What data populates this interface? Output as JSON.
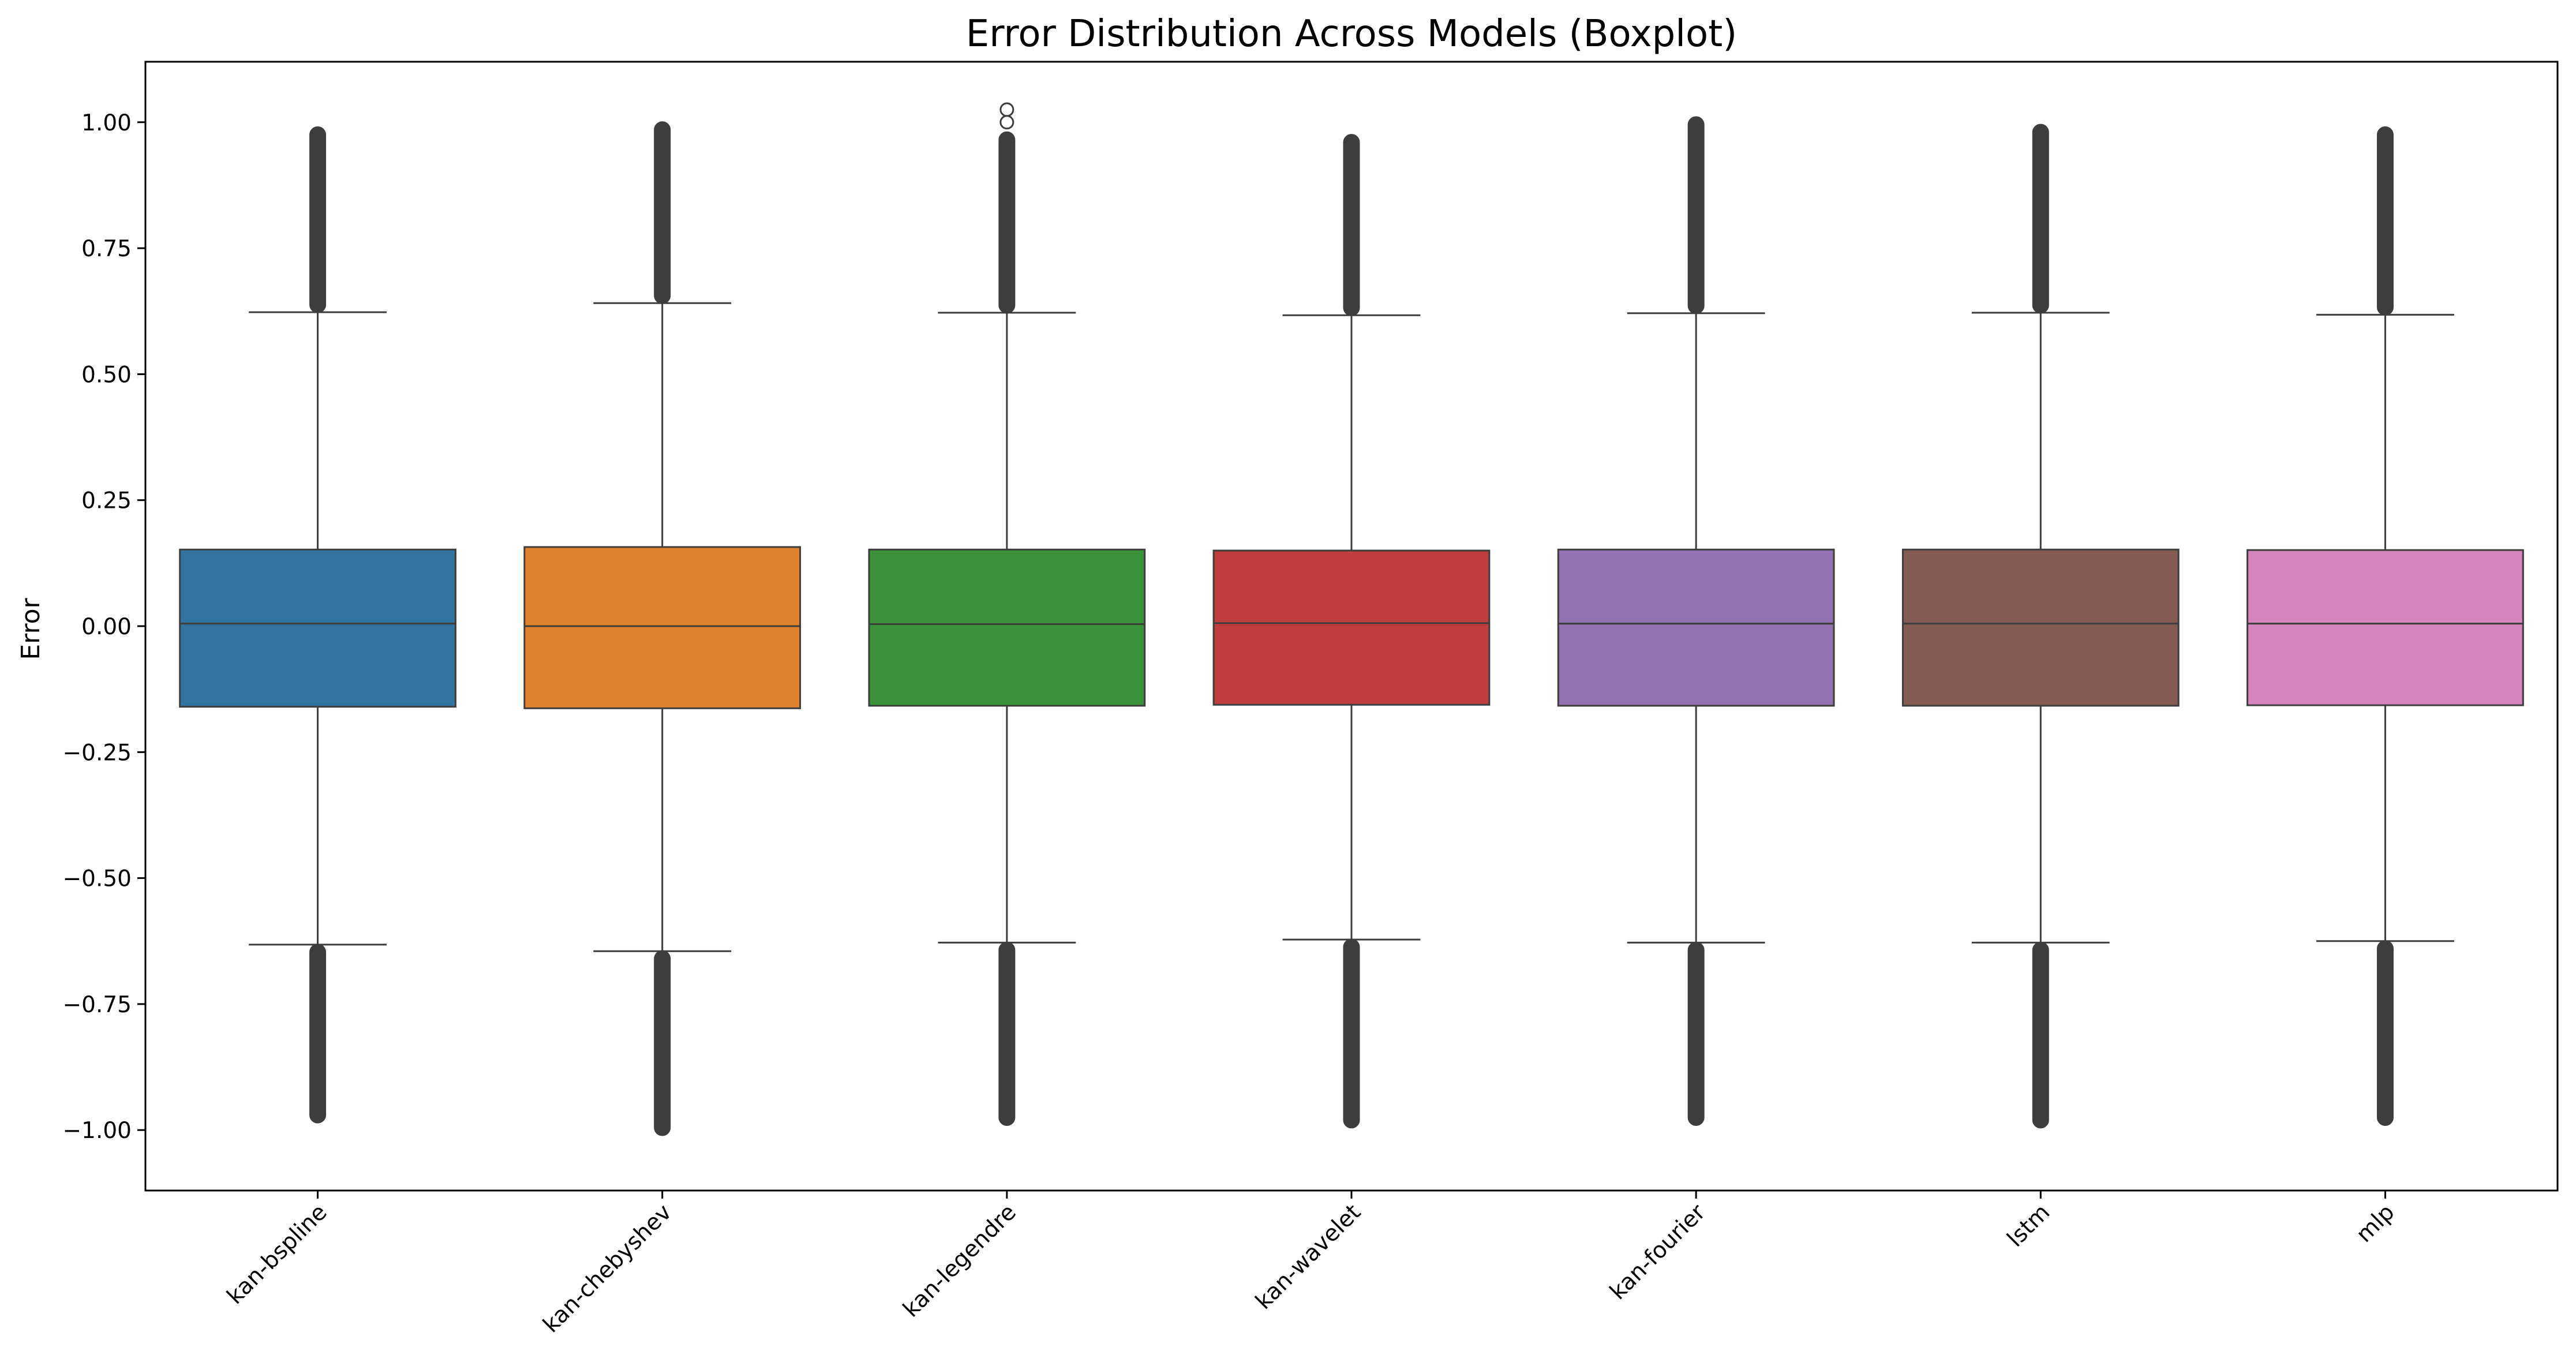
{
  "chart_data": {
    "type": "boxplot",
    "title": "Error Distribution Across Models (Boxplot)",
    "xlabel": "",
    "ylabel": "Error",
    "ylim": [
      -1.12,
      1.12
    ],
    "yticks": [
      1.0,
      0.75,
      0.5,
      0.25,
      0.0,
      -0.25,
      -0.5,
      -0.75,
      -1.0
    ],
    "ytick_labels": [
      "1.00",
      "0.75",
      "0.50",
      "0.25",
      "0.00",
      "−0.25",
      "−0.50",
      "−0.75",
      "−1.00"
    ],
    "grid": false,
    "categories": [
      "kan-bspline",
      "kan-chebyshev",
      "kan-legendre",
      "kan-wavelet",
      "kan-fourier",
      "lstm",
      "mlp"
    ],
    "series": [
      {
        "color": "#3274a1",
        "q1": -0.16,
        "median": 0.005,
        "q3": 0.152,
        "whisker_low": -0.632,
        "whisker_high": 0.623,
        "outliers_high_range": [
          0.623,
          0.99
        ],
        "outliers_low_range": [
          -0.985,
          -0.632
        ],
        "outliers_extra": []
      },
      {
        "color": "#e1812c",
        "q1": -0.163,
        "median": 0.0,
        "q3": 0.157,
        "whisker_low": -0.645,
        "whisker_high": 0.641,
        "outliers_high_range": [
          0.641,
          1.0
        ],
        "outliers_low_range": [
          -1.01,
          -0.645
        ],
        "outliers_extra": []
      },
      {
        "color": "#3a923a",
        "q1": -0.158,
        "median": 0.004,
        "q3": 0.152,
        "whisker_low": -0.628,
        "whisker_high": 0.622,
        "outliers_high_range": [
          0.622,
          0.98
        ],
        "outliers_low_range": [
          -0.99,
          -0.628
        ],
        "outliers_extra": [
          1.0,
          1.025
        ]
      },
      {
        "color": "#c03d3e",
        "q1": -0.156,
        "median": 0.006,
        "q3": 0.15,
        "whisker_low": -0.622,
        "whisker_high": 0.617,
        "outliers_high_range": [
          0.617,
          0.975
        ],
        "outliers_low_range": [
          -0.995,
          -0.622
        ],
        "outliers_extra": []
      },
      {
        "color": "#9372b2",
        "q1": -0.158,
        "median": 0.005,
        "q3": 0.152,
        "whisker_low": -0.628,
        "whisker_high": 0.621,
        "outliers_high_range": [
          0.621,
          1.01
        ],
        "outliers_low_range": [
          -0.99,
          -0.628
        ],
        "outliers_extra": []
      },
      {
        "color": "#845b53",
        "q1": -0.158,
        "median": 0.005,
        "q3": 0.152,
        "whisker_low": -0.628,
        "whisker_high": 0.622,
        "outliers_high_range": [
          0.622,
          0.995
        ],
        "outliers_low_range": [
          -0.995,
          -0.628
        ],
        "outliers_extra": []
      },
      {
        "color": "#d684bd",
        "q1": -0.157,
        "median": 0.005,
        "q3": 0.151,
        "whisker_low": -0.625,
        "whisker_high": 0.618,
        "outliers_high_range": [
          0.618,
          0.99
        ],
        "outliers_low_range": [
          -0.99,
          -0.625
        ],
        "outliers_extra": []
      }
    ]
  }
}
